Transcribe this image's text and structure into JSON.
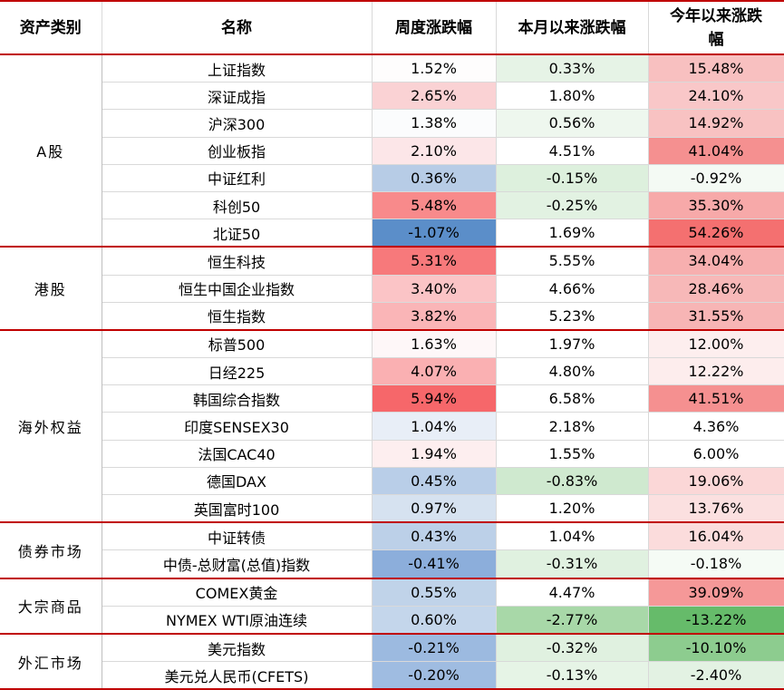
{
  "headers": [
    "资产类别",
    "名称",
    "周度涨跌幅",
    "本月以来涨跌幅",
    "今年以来涨跌幅"
  ],
  "groups": [
    {
      "category": "A股",
      "rows": [
        {
          "name": "上证指数",
          "week": "1.52%",
          "month": "0.33%",
          "ytd": "15.48%",
          "colors": [
            "#fefdfd",
            "#e6f3e6",
            "#f8c0c0"
          ]
        },
        {
          "name": "深证成指",
          "week": "2.65%",
          "month": "1.80%",
          "ytd": "24.10%",
          "colors": [
            "#fad2d4",
            "#ffffff",
            "#f9c7c8"
          ]
        },
        {
          "name": "沪深300",
          "week": "1.38%",
          "month": "0.56%",
          "ytd": "14.92%",
          "colors": [
            "#fbfcfd",
            "#eef7ee",
            "#f8c2c2"
          ]
        },
        {
          "name": "创业板指",
          "week": "2.10%",
          "month": "4.51%",
          "ytd": "41.04%",
          "colors": [
            "#fce6e8",
            "#ffffff",
            "#f59090"
          ]
        },
        {
          "name": "中证红利",
          "week": "0.36%",
          "month": "-0.15%",
          "ytd": "-0.92%",
          "colors": [
            "#b7cce6",
            "#ddf0dd",
            "#f4faf4"
          ]
        },
        {
          "name": "科创50",
          "week": "5.48%",
          "month": "-0.25%",
          "ytd": "35.30%",
          "colors": [
            "#f88a8b",
            "#e2f2e2",
            "#f7a9a9"
          ]
        },
        {
          "name": "北证50",
          "week": "-1.07%",
          "month": "1.69%",
          "ytd": "54.26%",
          "colors": [
            "#5b8ec9",
            "#ffffff",
            "#f47070"
          ]
        }
      ]
    },
    {
      "category": "港股",
      "rows": [
        {
          "name": "恒生科技",
          "week": "5.31%",
          "month": "5.55%",
          "ytd": "34.04%",
          "colors": [
            "#f7797b",
            "#ffffff",
            "#f7afaf"
          ]
        },
        {
          "name": "恒生中国企业指数",
          "week": "3.40%",
          "month": "4.66%",
          "ytd": "28.46%",
          "colors": [
            "#fbc4c6",
            "#ffffff",
            "#f7b8b8"
          ]
        },
        {
          "name": "恒生指数",
          "week": "3.82%",
          "month": "5.23%",
          "ytd": "31.55%",
          "colors": [
            "#fab5b7",
            "#ffffff",
            "#f7b5b5"
          ]
        }
      ]
    },
    {
      "category": "海外权益",
      "rows": [
        {
          "name": "标普500",
          "week": "1.63%",
          "month": "1.97%",
          "ytd": "12.00%",
          "colors": [
            "#fef7f8",
            "#ffffff",
            "#fdeeee"
          ]
        },
        {
          "name": "日经225",
          "week": "4.07%",
          "month": "4.80%",
          "ytd": "12.22%",
          "colors": [
            "#fab0b2",
            "#ffffff",
            "#fdeded"
          ]
        },
        {
          "name": "韩国综合指数",
          "week": "5.94%",
          "month": "6.58%",
          "ytd": "41.51%",
          "colors": [
            "#f6676a",
            "#ffffff",
            "#f59090"
          ]
        },
        {
          "name": "印度SENSEX30",
          "week": "1.04%",
          "month": "2.18%",
          "ytd": "4.36%",
          "colors": [
            "#e8eef7",
            "#ffffff",
            "#ffffff"
          ]
        },
        {
          "name": "法国CAC40",
          "week": "1.94%",
          "month": "1.55%",
          "ytd": "6.00%",
          "colors": [
            "#fdeeef",
            "#ffffff",
            "#ffffff"
          ]
        },
        {
          "name": "德国DAX",
          "week": "0.45%",
          "month": "-0.83%",
          "ytd": "19.06%",
          "colors": [
            "#b9cee8",
            "#cfe9cf",
            "#fbd7d7"
          ]
        },
        {
          "name": "英国富时100",
          "week": "0.97%",
          "month": "1.20%",
          "ytd": "13.76%",
          "colors": [
            "#d6e2f0",
            "#ffffff",
            "#fbe0e0"
          ]
        }
      ]
    },
    {
      "category": "债券市场",
      "rows": [
        {
          "name": "中证转债",
          "week": "0.43%",
          "month": "1.04%",
          "ytd": "16.04%",
          "colors": [
            "#bcd0e8",
            "#ffffff",
            "#fbdcdc"
          ]
        },
        {
          "name": "中债-总财富(总值)指数",
          "week": "-0.41%",
          "month": "-0.31%",
          "ytd": "-0.18%",
          "colors": [
            "#8caedb",
            "#e0f1e0",
            "#f5fbf5"
          ]
        }
      ]
    },
    {
      "category": "大宗商品",
      "rows": [
        {
          "name": "COMEX黄金",
          "week": "0.55%",
          "month": "4.47%",
          "ytd": "39.09%",
          "colors": [
            "#c0d3e9",
            "#ffffff",
            "#f59898"
          ]
        },
        {
          "name": "NYMEX WTI原油连续",
          "week": "0.60%",
          "month": "-2.77%",
          "ytd": "-13.22%",
          "colors": [
            "#c4d6eb",
            "#a8d8a8",
            "#66bb6a"
          ]
        }
      ]
    },
    {
      "category": "外汇市场",
      "rows": [
        {
          "name": "美元指数",
          "week": "-0.21%",
          "month": "-0.32%",
          "ytd": "-10.10%",
          "colors": [
            "#9cbae0",
            "#e0f1e0",
            "#8dcc8f"
          ]
        },
        {
          "name": "美元兑人民币(CFETS)",
          "week": "-0.20%",
          "month": "-0.13%",
          "ytd": "-2.40%",
          "colors": [
            "#9fbce1",
            "#e6f4e6",
            "#e3f2e3"
          ]
        }
      ]
    }
  ]
}
